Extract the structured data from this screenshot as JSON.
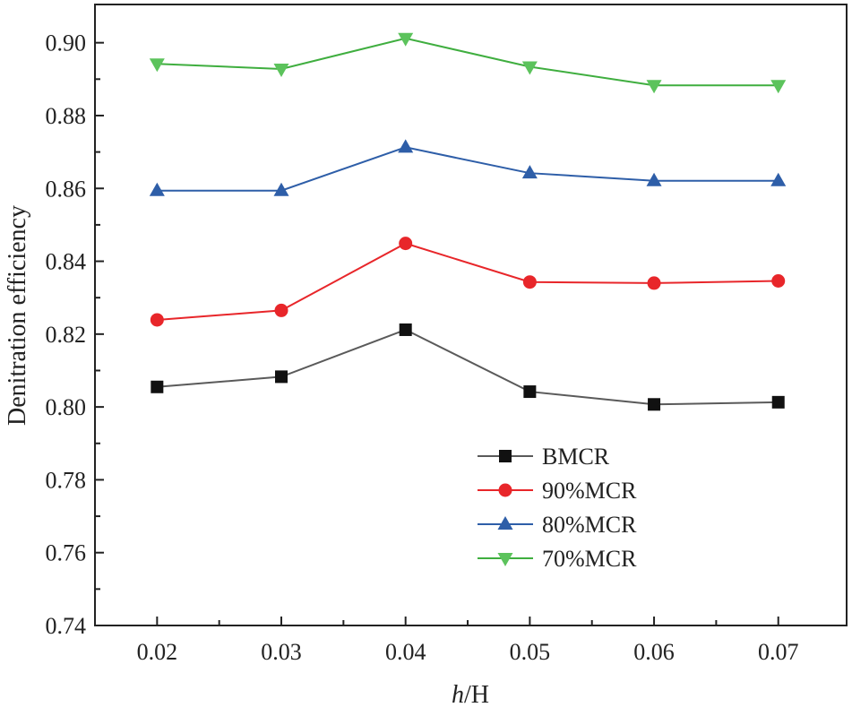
{
  "chart_data": {
    "type": "line",
    "title": "",
    "xlabel_italic": "h",
    "xlabel_rest": "/H",
    "ylabel": "Denitration efficiency",
    "categories": [
      "0.02",
      "0.03",
      "0.04",
      "0.05",
      "0.06",
      "0.07"
    ],
    "x": [
      0.02,
      0.03,
      0.04,
      0.05,
      0.06,
      0.07
    ],
    "xlim": [
      0.015,
      0.0755
    ],
    "ylim": [
      0.74,
      0.9105
    ],
    "yticks": [
      "0.74",
      "0.76",
      "0.78",
      "0.80",
      "0.82",
      "0.84",
      "0.86",
      "0.88",
      "0.90"
    ],
    "legend_position": "center-right",
    "series": [
      {
        "name": "BMCR",
        "color": "#5a5a5a",
        "marker": "square",
        "marker_color": "#111111",
        "values": [
          0.8055,
          0.8083,
          0.8212,
          0.8042,
          0.8007,
          0.8013
        ]
      },
      {
        "name": "90%MCR",
        "color": "#e8262a",
        "marker": "circle",
        "marker_color": "#e8262a",
        "values": [
          0.8239,
          0.8265,
          0.8449,
          0.8343,
          0.834,
          0.8346
        ]
      },
      {
        "name": "80%MCR",
        "color": "#2e5ea8",
        "marker": "triangle-up",
        "marker_color": "#2e5ea8",
        "values": [
          0.8594,
          0.8594,
          0.8713,
          0.8642,
          0.8621,
          0.8621
        ]
      },
      {
        "name": "70%MCR",
        "color": "#3fae3f",
        "marker": "triangle-down",
        "marker_color": "#5cc35c",
        "values": [
          0.8942,
          0.8928,
          0.9012,
          0.8934,
          0.8883,
          0.8883
        ]
      }
    ]
  }
}
